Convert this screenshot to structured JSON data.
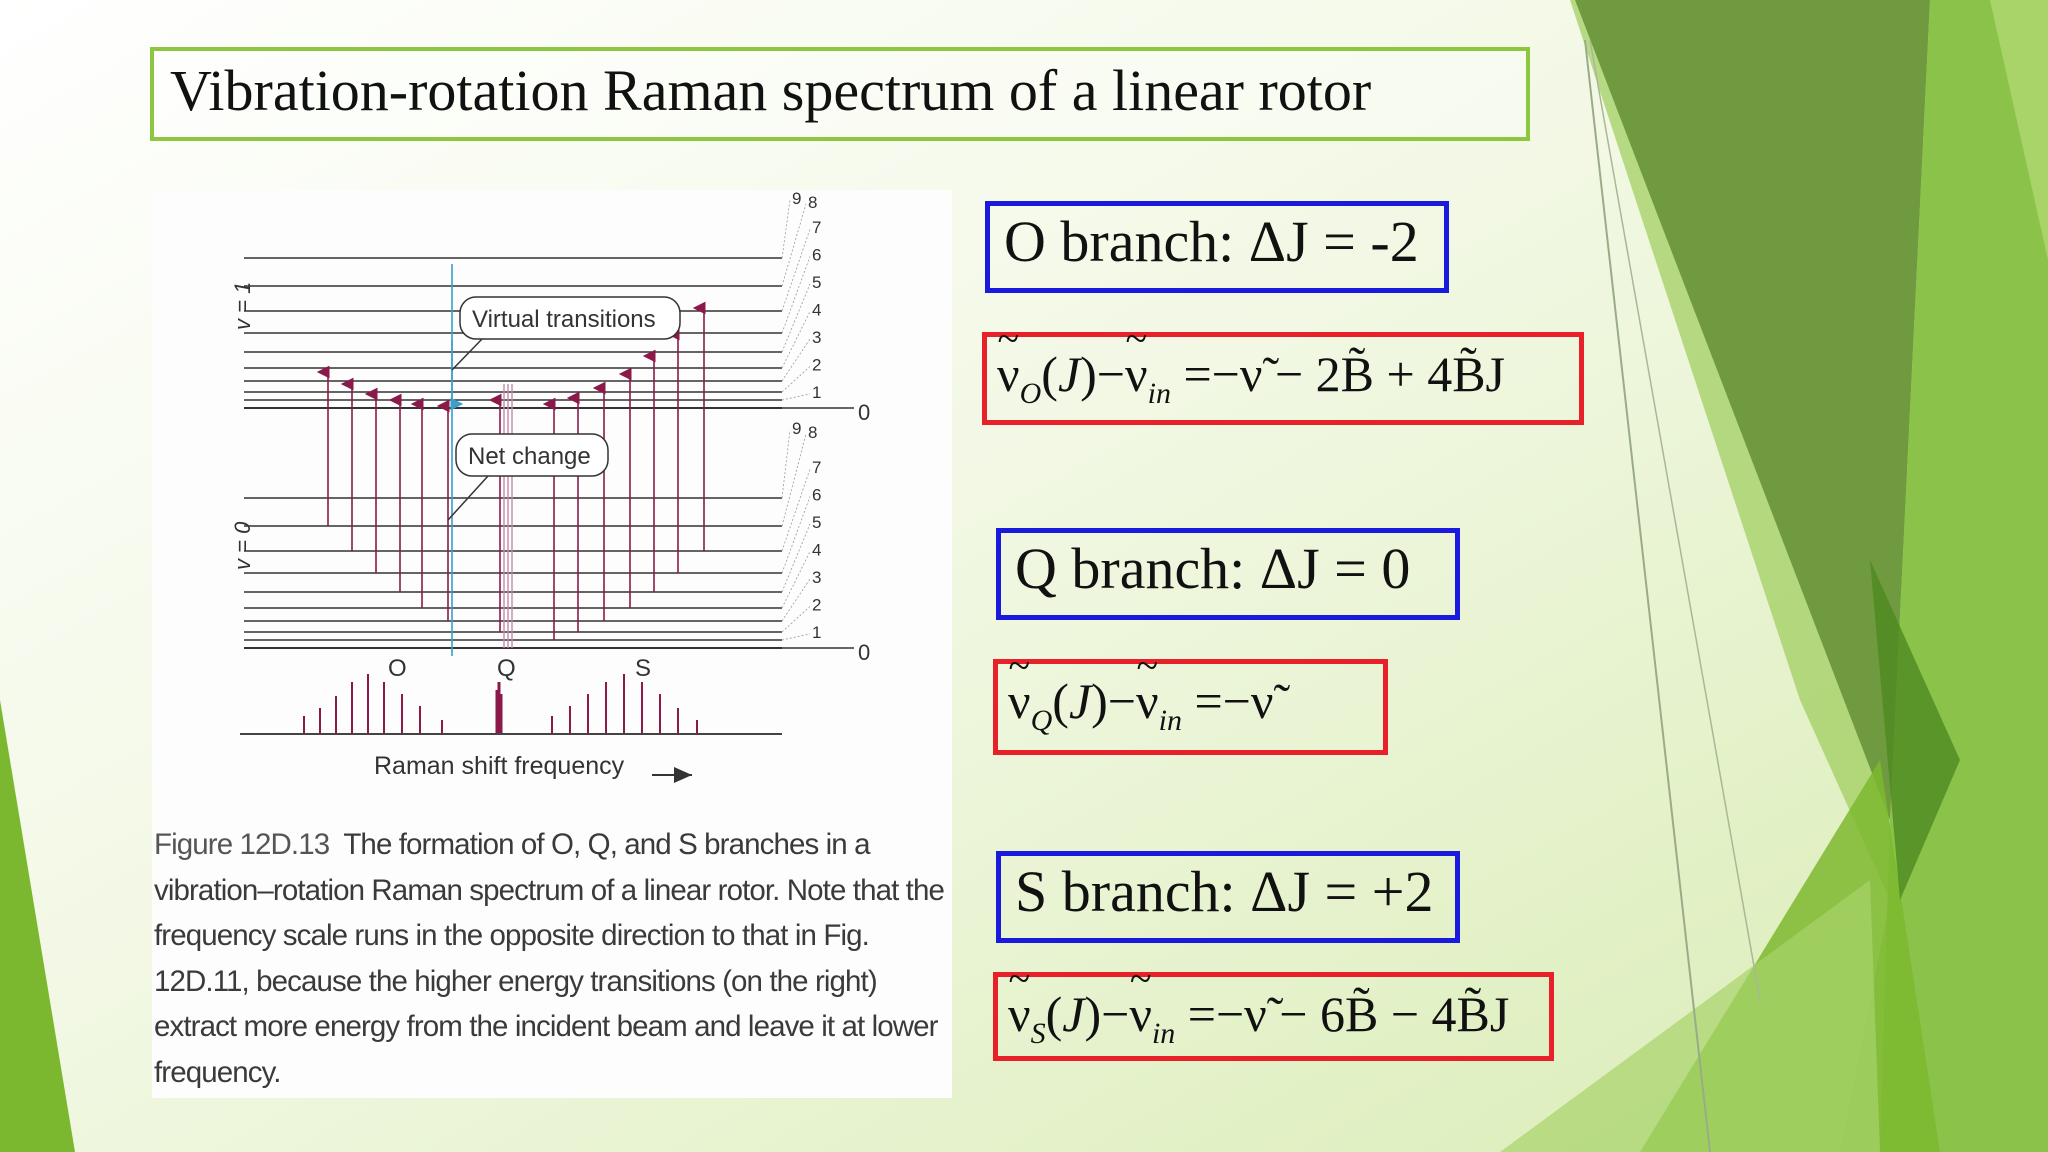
{
  "title": "Vibration-rotation Raman spectrum of a linear rotor",
  "figure": {
    "upper_state_label": "v = 1",
    "lower_state_label": "v = 0",
    "upper_J_labels": [
      "1",
      "2",
      "3",
      "4",
      "5",
      "6",
      "7",
      "8",
      "9"
    ],
    "lower_J_labels": [
      "1",
      "2",
      "3",
      "4",
      "5",
      "6",
      "7",
      "8",
      "9"
    ],
    "zero_label_upper": "0",
    "zero_label_lower": "0",
    "callout_virtual": "Virtual transitions",
    "callout_net": "Net change",
    "branch_labels": [
      "O",
      "Q",
      "S"
    ],
    "axis_label": "Raman shift frequency",
    "caption_label": "Figure 12D.13",
    "caption_text": "The formation of O, Q, and S branches in a vibration–rotation Raman spectrum of a linear rotor. Note that the frequency scale runs in the opposite direction to that in Fig. 12D.11, because the higher energy transitions (on the right) extract more energy from the incident beam and leave it at lower frequency."
  },
  "branches": [
    {
      "label": "O branch: ΔJ = -2"
    },
    {
      "label": "Q branch: ΔJ = 0"
    },
    {
      "label": "S branch: ΔJ = +2"
    }
  ],
  "equations": {
    "O": {
      "lhs_sub": "O",
      "in_sub": "in",
      "rhs": "=−ν̃ − 2B̃ + 4B̃J"
    },
    "Q": {
      "lhs_sub": "Q",
      "in_sub": "in",
      "rhs": "=−ν̃"
    },
    "S": {
      "lhs_sub": "S",
      "in_sub": "in",
      "rhs": "=−ν̃ − 6B̃ − 4B̃J"
    }
  },
  "colors": {
    "title_border": "#8dc63f",
    "branch_border": "#1a1adf",
    "equation_border": "#e8202a",
    "arrow": "#8b1a4a",
    "virtual": "#3aa0c8"
  }
}
